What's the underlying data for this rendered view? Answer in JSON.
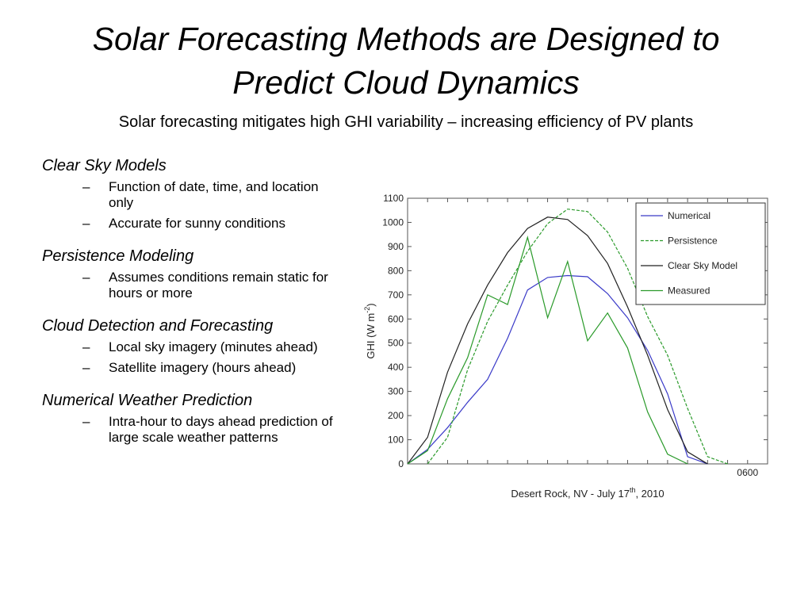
{
  "slide": {
    "title_line1": "Solar Forecasting Methods are Designed to",
    "title_line2": "Predict Cloud Dynamics",
    "subtitle": "Solar forecasting mitigates high GHI variability – increasing efficiency of PV plants"
  },
  "sections": [
    {
      "heading": "Clear Sky Models",
      "items": [
        "Function of date, time, and location only",
        "Accurate for sunny conditions"
      ]
    },
    {
      "heading": "Persistence Modeling",
      "items": [
        "Assumes conditions remain static for hours or more"
      ]
    },
    {
      "heading": "Cloud Detection and Forecasting",
      "items": [
        "Local sky imagery (minutes ahead)",
        "Satellite imagery (hours ahead)"
      ]
    },
    {
      "heading": "Numerical Weather Prediction",
      "items": [
        "Intra-hour to days ahead prediction of large scale weather patterns"
      ]
    }
  ],
  "bullet_marker": "–",
  "chart_data": {
    "type": "line",
    "xlabel": "Desert Rock, NV - July 17th, 2010",
    "xlabel_main": "Desert Rock, NV - July 17",
    "xlabel_sup": "th",
    "xlabel_tail": ", 2010",
    "ylabel": "GHI (W m-2)",
    "ylabel_main": "GHI (W m",
    "ylabel_sup": "-2",
    "ylabel_tail": ")",
    "xtick_labels": [
      "0600"
    ],
    "xtick_positions": [
      17
    ],
    "yticks": [
      0,
      100,
      200,
      300,
      400,
      500,
      600,
      700,
      800,
      900,
      1000,
      1100
    ],
    "xlim": [
      0,
      18
    ],
    "ylim": [
      0,
      1100
    ],
    "grid": false,
    "legend_position": "top-right",
    "x": [
      0,
      1,
      2,
      3,
      4,
      5,
      6,
      7,
      8,
      9,
      10,
      11,
      12,
      13,
      14,
      15,
      16
    ],
    "series": [
      {
        "name": "Numerical",
        "color": "#3a3ac8",
        "dash": "solid",
        "values": [
          0,
          60,
          150,
          255,
          350,
          520,
          720,
          772,
          780,
          775,
          705,
          605,
          470,
          290,
          30,
          0,
          null
        ]
      },
      {
        "name": "Persistence",
        "color": "#2a9a2a",
        "dash": "dashed",
        "values": [
          null,
          0,
          110,
          390,
          590,
          740,
          880,
          995,
          1055,
          1045,
          960,
          810,
          610,
          450,
          230,
          30,
          0
        ]
      },
      {
        "name": "Clear Sky Model",
        "color": "#222222",
        "dash": "solid",
        "values": [
          0,
          110,
          380,
          580,
          740,
          875,
          975,
          1022,
          1012,
          945,
          830,
          650,
          450,
          225,
          50,
          0,
          null
        ]
      },
      {
        "name": "Measured",
        "color": "#2a9a2a",
        "dash": "solid",
        "values": [
          0,
          55,
          270,
          440,
          700,
          660,
          938,
          605,
          838,
          510,
          625,
          480,
          215,
          40,
          0,
          null,
          null
        ]
      }
    ]
  }
}
